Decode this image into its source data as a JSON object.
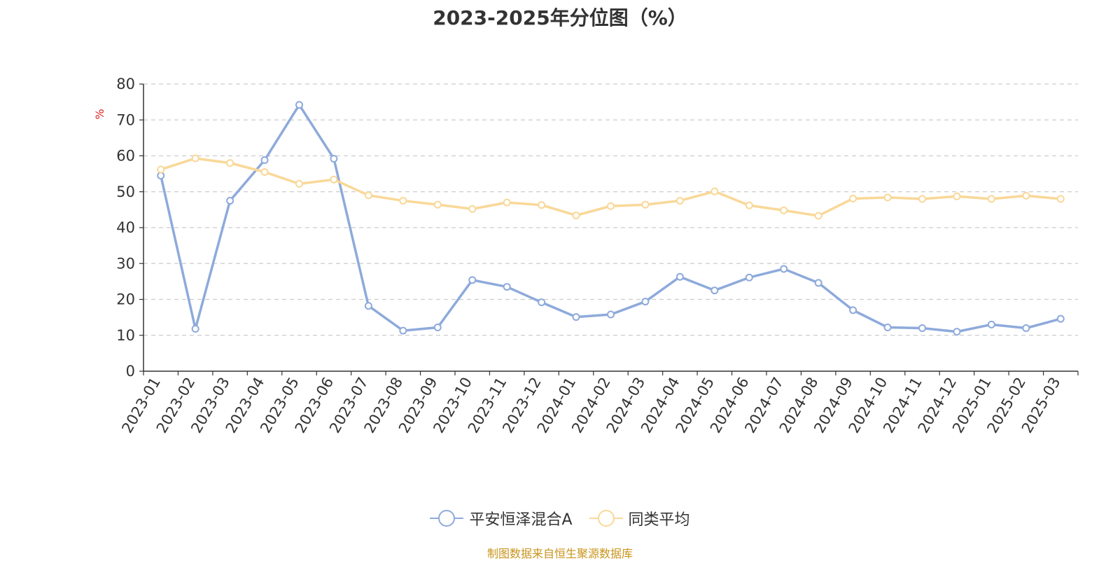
{
  "title": "2023-2025年分位图（%）",
  "source_note": "制图数据来自恒生聚源数据库",
  "chart_data": {
    "type": "line",
    "ylabel": "%",
    "ylim": [
      0,
      80
    ],
    "yticks": [
      0,
      10,
      20,
      30,
      40,
      50,
      60,
      70,
      80
    ],
    "grid": true,
    "legend_position": "bottom",
    "categories": [
      "2023-01",
      "2023-02",
      "2023-03",
      "2023-04",
      "2023-05",
      "2023-06",
      "2023-07",
      "2023-08",
      "2023-09",
      "2023-10",
      "2023-11",
      "2023-12",
      "2024-01",
      "2024-02",
      "2024-03",
      "2024-04",
      "2024-05",
      "2024-06",
      "2024-07",
      "2024-08",
      "2024-09",
      "2024-10",
      "2024-11",
      "2024-12",
      "2025-01",
      "2025-02",
      "2025-03"
    ],
    "series": [
      {
        "name": "平安恒泽混合A",
        "color": "#8eaadb",
        "values": [
          54.5,
          11.8,
          47.5,
          58.8,
          74.2,
          59.2,
          18.2,
          11.3,
          12.2,
          25.4,
          23.5,
          19.2,
          15.1,
          15.8,
          19.4,
          26.3,
          22.5,
          26.1,
          28.5,
          24.6,
          17.0,
          12.2,
          12.0,
          11.0,
          13.0,
          12.0,
          14.6
        ]
      },
      {
        "name": "同类平均",
        "color": "#f9d898",
        "values": [
          56.2,
          59.3,
          58.0,
          55.5,
          52.2,
          53.4,
          49.0,
          47.5,
          46.4,
          45.2,
          47.0,
          46.3,
          43.4,
          46.0,
          46.4,
          47.5,
          50.1,
          46.2,
          44.8,
          43.3,
          48.1,
          48.4,
          48.0,
          48.7,
          48.0,
          48.9,
          48.0
        ]
      }
    ]
  }
}
